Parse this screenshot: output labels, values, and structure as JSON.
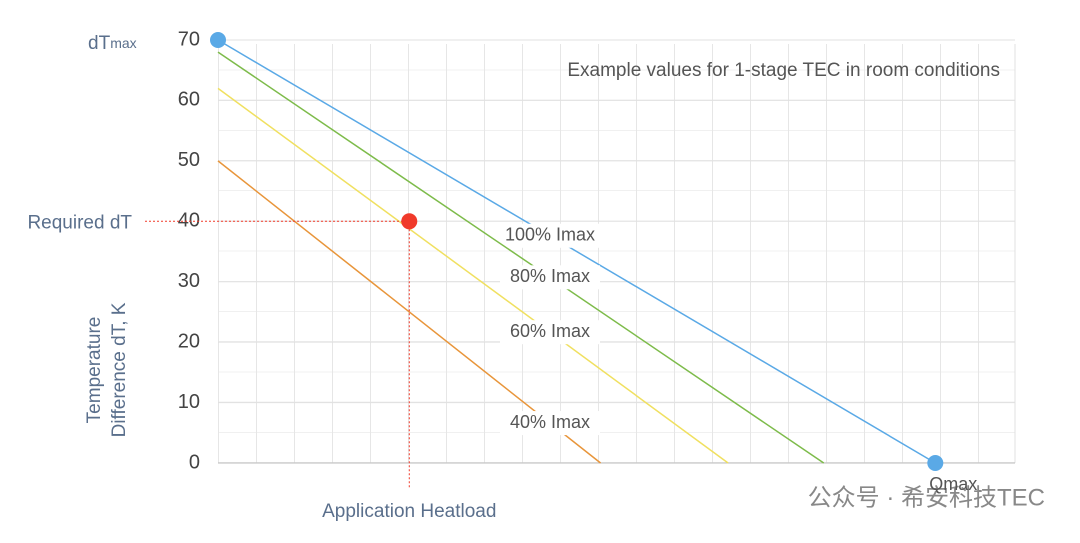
{
  "chart_data": {
    "type": "line",
    "title": "Example values for 1-stage TEC in room conditions",
    "ylabel": [
      "Temperature",
      "Difference dT, K"
    ],
    "xlim": [
      0,
      100
    ],
    "ylim": [
      0,
      70
    ],
    "yticks": [
      0,
      10,
      20,
      30,
      40,
      50,
      60,
      70
    ],
    "grid": true,
    "series": [
      {
        "name": "100% Imax",
        "color": "#5aa9e6",
        "x": [
          0,
          90
        ],
        "values": [
          70,
          0
        ]
      },
      {
        "name": "80% Imax",
        "color": "#7dbb4a",
        "x": [
          0,
          76
        ],
        "values": [
          68,
          0
        ]
      },
      {
        "name": "60% Imax",
        "color": "#f0e060",
        "x": [
          0,
          64
        ],
        "values": [
          62,
          0
        ]
      },
      {
        "name": "40% Imax",
        "color": "#e8953a",
        "x": [
          0,
          48
        ],
        "values": [
          50,
          0
        ]
      }
    ],
    "points": [
      {
        "name": "dT",
        "sub": "max",
        "color": "#5aa9e6",
        "x": 0,
        "y": 70
      },
      {
        "name": "Qmax",
        "color": "#5aa9e6",
        "x": 90,
        "y": 0
      },
      {
        "name": "Required dT",
        "xlabel": "Application Heatload",
        "color": "#f03a2a",
        "x": 24,
        "y": 40
      }
    ],
    "watermark": "公众号 · 希安科技TEC"
  }
}
